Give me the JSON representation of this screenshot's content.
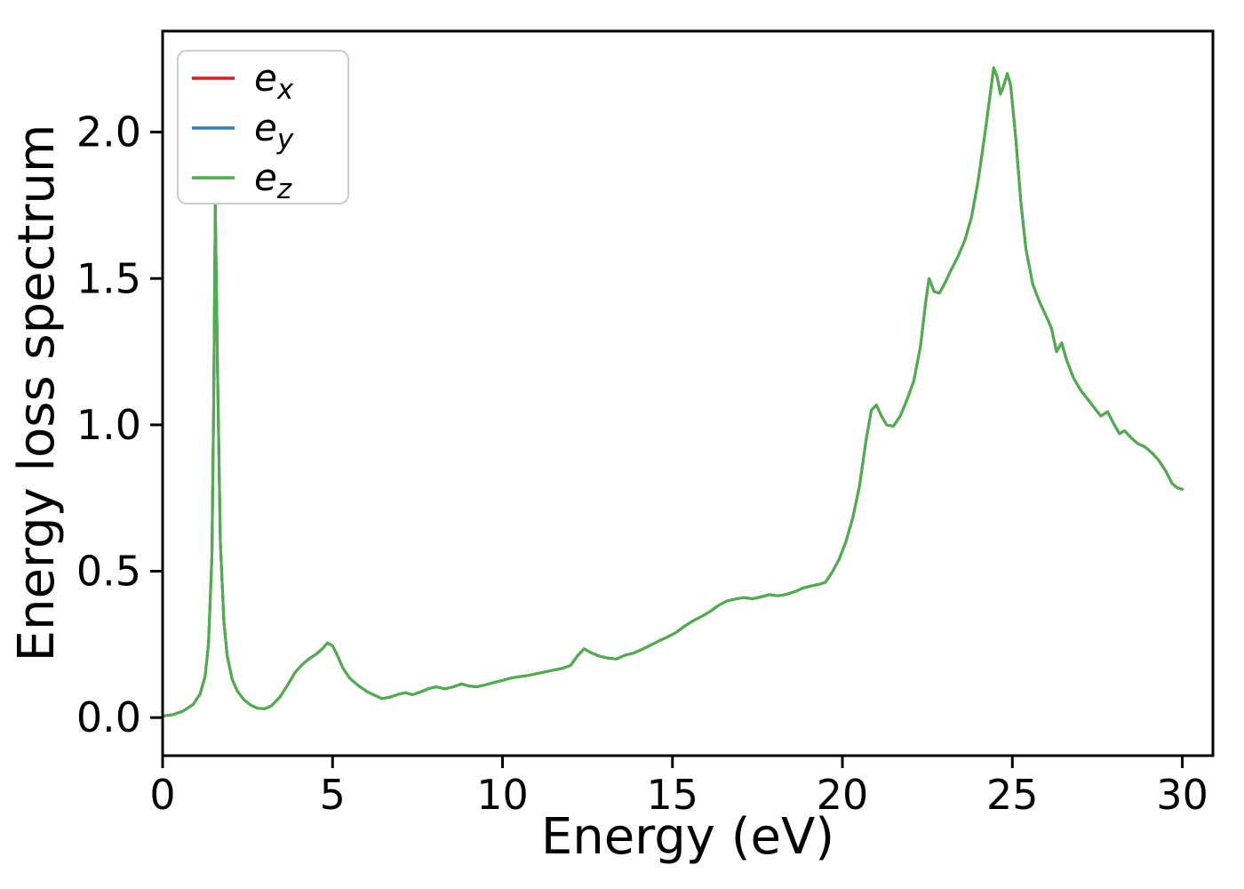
{
  "figure": {
    "background": "#ffffff",
    "axes_color": "#000000",
    "legend_border_color": "#cccccc",
    "legend_background": "rgba(255,255,255,0.85)"
  },
  "chart_data": {
    "type": "line",
    "title": "",
    "xlabel": "Energy (eV)",
    "ylabel": "Energy loss spectrum",
    "xlim": [
      0,
      30.9
    ],
    "ylim": [
      -0.13,
      2.345
    ],
    "grid": false,
    "legend_position": "upper-left",
    "xticks": {
      "values": [
        0,
        5,
        10,
        15,
        20,
        25,
        30
      ],
      "labels": [
        "0",
        "5",
        "10",
        "15",
        "20",
        "25",
        "30"
      ]
    },
    "yticks": {
      "values": [
        0.0,
        0.5,
        1.0,
        1.5,
        2.0
      ],
      "labels": [
        "0.0",
        "0.5",
        "1.0",
        "1.5",
        "2.0"
      ]
    },
    "series": [
      {
        "label": "e_x",
        "base": "e",
        "sub": "x",
        "color": "#e41a1c"
      },
      {
        "label": "e_y",
        "base": "e",
        "sub": "y",
        "color": "#377eb8"
      },
      {
        "label": "e_z",
        "base": "e",
        "sub": "z",
        "color": "#4daf4a"
      }
    ],
    "note": "All three series (e_x, e_y, e_z) coincide exactly; shared values below.",
    "x": [
      0,
      0.3,
      0.6,
      0.9,
      1.1,
      1.25,
      1.35,
      1.45,
      1.5,
      1.55,
      1.62,
      1.7,
      1.8,
      1.9,
      2.05,
      2.2,
      2.4,
      2.6,
      2.8,
      3.0,
      3.2,
      3.45,
      3.7,
      3.9,
      4.1,
      4.3,
      4.5,
      4.7,
      4.85,
      5.0,
      5.15,
      5.3,
      5.5,
      5.75,
      6.0,
      6.2,
      6.45,
      6.7,
      6.95,
      7.15,
      7.35,
      7.6,
      7.85,
      8.05,
      8.3,
      8.55,
      8.8,
      9.0,
      9.25,
      9.5,
      9.75,
      10.0,
      10.25,
      10.5,
      10.75,
      11.0,
      11.25,
      11.5,
      11.75,
      12.0,
      12.2,
      12.4,
      12.6,
      12.85,
      13.1,
      13.35,
      13.6,
      13.85,
      14.1,
      14.35,
      14.6,
      14.85,
      15.1,
      15.35,
      15.6,
      15.85,
      16.1,
      16.35,
      16.6,
      16.85,
      17.1,
      17.35,
      17.6,
      17.85,
      18.1,
      18.35,
      18.6,
      18.85,
      19.1,
      19.3,
      19.5,
      19.7,
      19.9,
      20.1,
      20.3,
      20.5,
      20.7,
      20.85,
      21.0,
      21.15,
      21.3,
      21.5,
      21.7,
      21.9,
      22.1,
      22.3,
      22.45,
      22.55,
      22.7,
      22.85,
      23.0,
      23.2,
      23.4,
      23.6,
      23.8,
      24.0,
      24.2,
      24.35,
      24.45,
      24.55,
      24.65,
      24.75,
      24.85,
      24.95,
      25.1,
      25.25,
      25.4,
      25.6,
      25.8,
      26.0,
      26.15,
      26.3,
      26.45,
      26.6,
      26.8,
      27.0,
      27.2,
      27.4,
      27.6,
      27.8,
      28.0,
      28.15,
      28.3,
      28.5,
      28.7,
      28.9,
      29.1,
      29.3,
      29.5,
      29.7,
      29.85,
      30.0
    ],
    "values": [
      0.005,
      0.01,
      0.022,
      0.045,
      0.08,
      0.14,
      0.25,
      0.55,
      1.05,
      1.75,
      1.15,
      0.6,
      0.33,
      0.21,
      0.13,
      0.09,
      0.06,
      0.042,
      0.032,
      0.03,
      0.04,
      0.07,
      0.115,
      0.155,
      0.18,
      0.2,
      0.215,
      0.235,
      0.255,
      0.245,
      0.21,
      0.17,
      0.135,
      0.11,
      0.09,
      0.078,
      0.065,
      0.07,
      0.08,
      0.085,
      0.078,
      0.088,
      0.1,
      0.105,
      0.098,
      0.105,
      0.115,
      0.108,
      0.105,
      0.112,
      0.12,
      0.127,
      0.135,
      0.14,
      0.144,
      0.15,
      0.156,
      0.162,
      0.168,
      0.178,
      0.21,
      0.235,
      0.222,
      0.21,
      0.203,
      0.2,
      0.213,
      0.22,
      0.233,
      0.247,
      0.262,
      0.275,
      0.29,
      0.312,
      0.33,
      0.345,
      0.362,
      0.383,
      0.398,
      0.405,
      0.41,
      0.406,
      0.412,
      0.42,
      0.416,
      0.421,
      0.43,
      0.443,
      0.45,
      0.455,
      0.462,
      0.497,
      0.54,
      0.6,
      0.68,
      0.79,
      0.95,
      1.05,
      1.068,
      1.03,
      1.0,
      0.995,
      1.03,
      1.085,
      1.15,
      1.27,
      1.42,
      1.5,
      1.455,
      1.45,
      1.48,
      1.53,
      1.575,
      1.63,
      1.71,
      1.84,
      2.0,
      2.13,
      2.22,
      2.19,
      2.13,
      2.16,
      2.2,
      2.16,
      1.98,
      1.76,
      1.6,
      1.48,
      1.42,
      1.37,
      1.33,
      1.25,
      1.28,
      1.22,
      1.16,
      1.12,
      1.09,
      1.06,
      1.03,
      1.045,
      1.0,
      0.97,
      0.98,
      0.955,
      0.935,
      0.925,
      0.905,
      0.88,
      0.845,
      0.8,
      0.785,
      0.78
    ]
  }
}
